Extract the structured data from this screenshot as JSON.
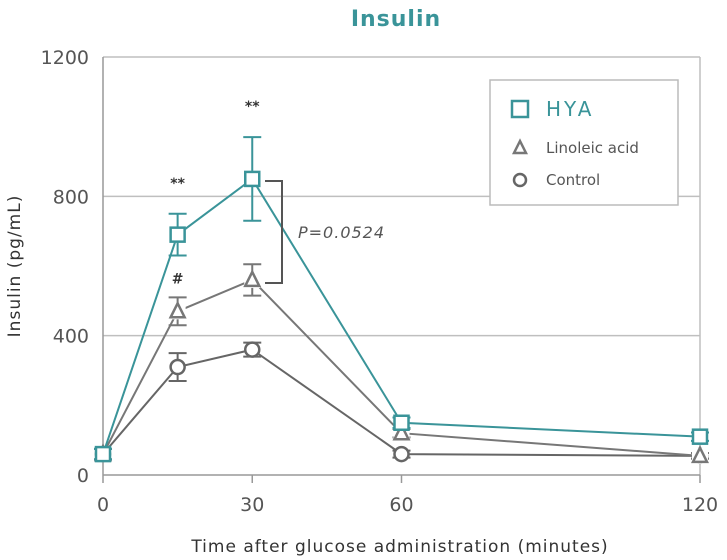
{
  "chart_data": {
    "type": "line",
    "title": "Insulin",
    "xlabel": "Time after glucose administration (minutes)",
    "ylabel": "Insulin (pg/mL)",
    "x": [
      0,
      15,
      30,
      60,
      120
    ],
    "xticks": [
      "0",
      "30",
      "60",
      "120"
    ],
    "yticks": [
      "0",
      "400",
      "800",
      "1200"
    ],
    "xlim": [
      0,
      120
    ],
    "ylim": [
      0,
      1200
    ],
    "grid": "horizontal",
    "series": [
      {
        "name": "HYA",
        "marker": "square",
        "color": "#3a9499",
        "values": [
          60,
          690,
          850,
          150,
          110
        ],
        "errors": [
          15,
          60,
          120,
          15,
          12
        ]
      },
      {
        "name": "Linoleic acid",
        "marker": "triangle",
        "color": "#777777",
        "values": [
          60,
          470,
          560,
          120,
          55
        ],
        "errors": [
          15,
          40,
          45,
          12,
          8
        ]
      },
      {
        "name": "Control",
        "marker": "circle",
        "color": "#666666",
        "values": [
          60,
          310,
          360,
          60,
          55
        ],
        "errors": [
          15,
          40,
          20,
          10,
          8
        ]
      }
    ],
    "legend_position": "top-right",
    "annotations": [
      {
        "text": "**",
        "x": 15,
        "series": "HYA"
      },
      {
        "text": "**",
        "x": 30,
        "series": "HYA"
      },
      {
        "text": "#",
        "x": 15,
        "series": "Linoleic acid"
      }
    ],
    "bracket_label": "P=0.0524"
  }
}
